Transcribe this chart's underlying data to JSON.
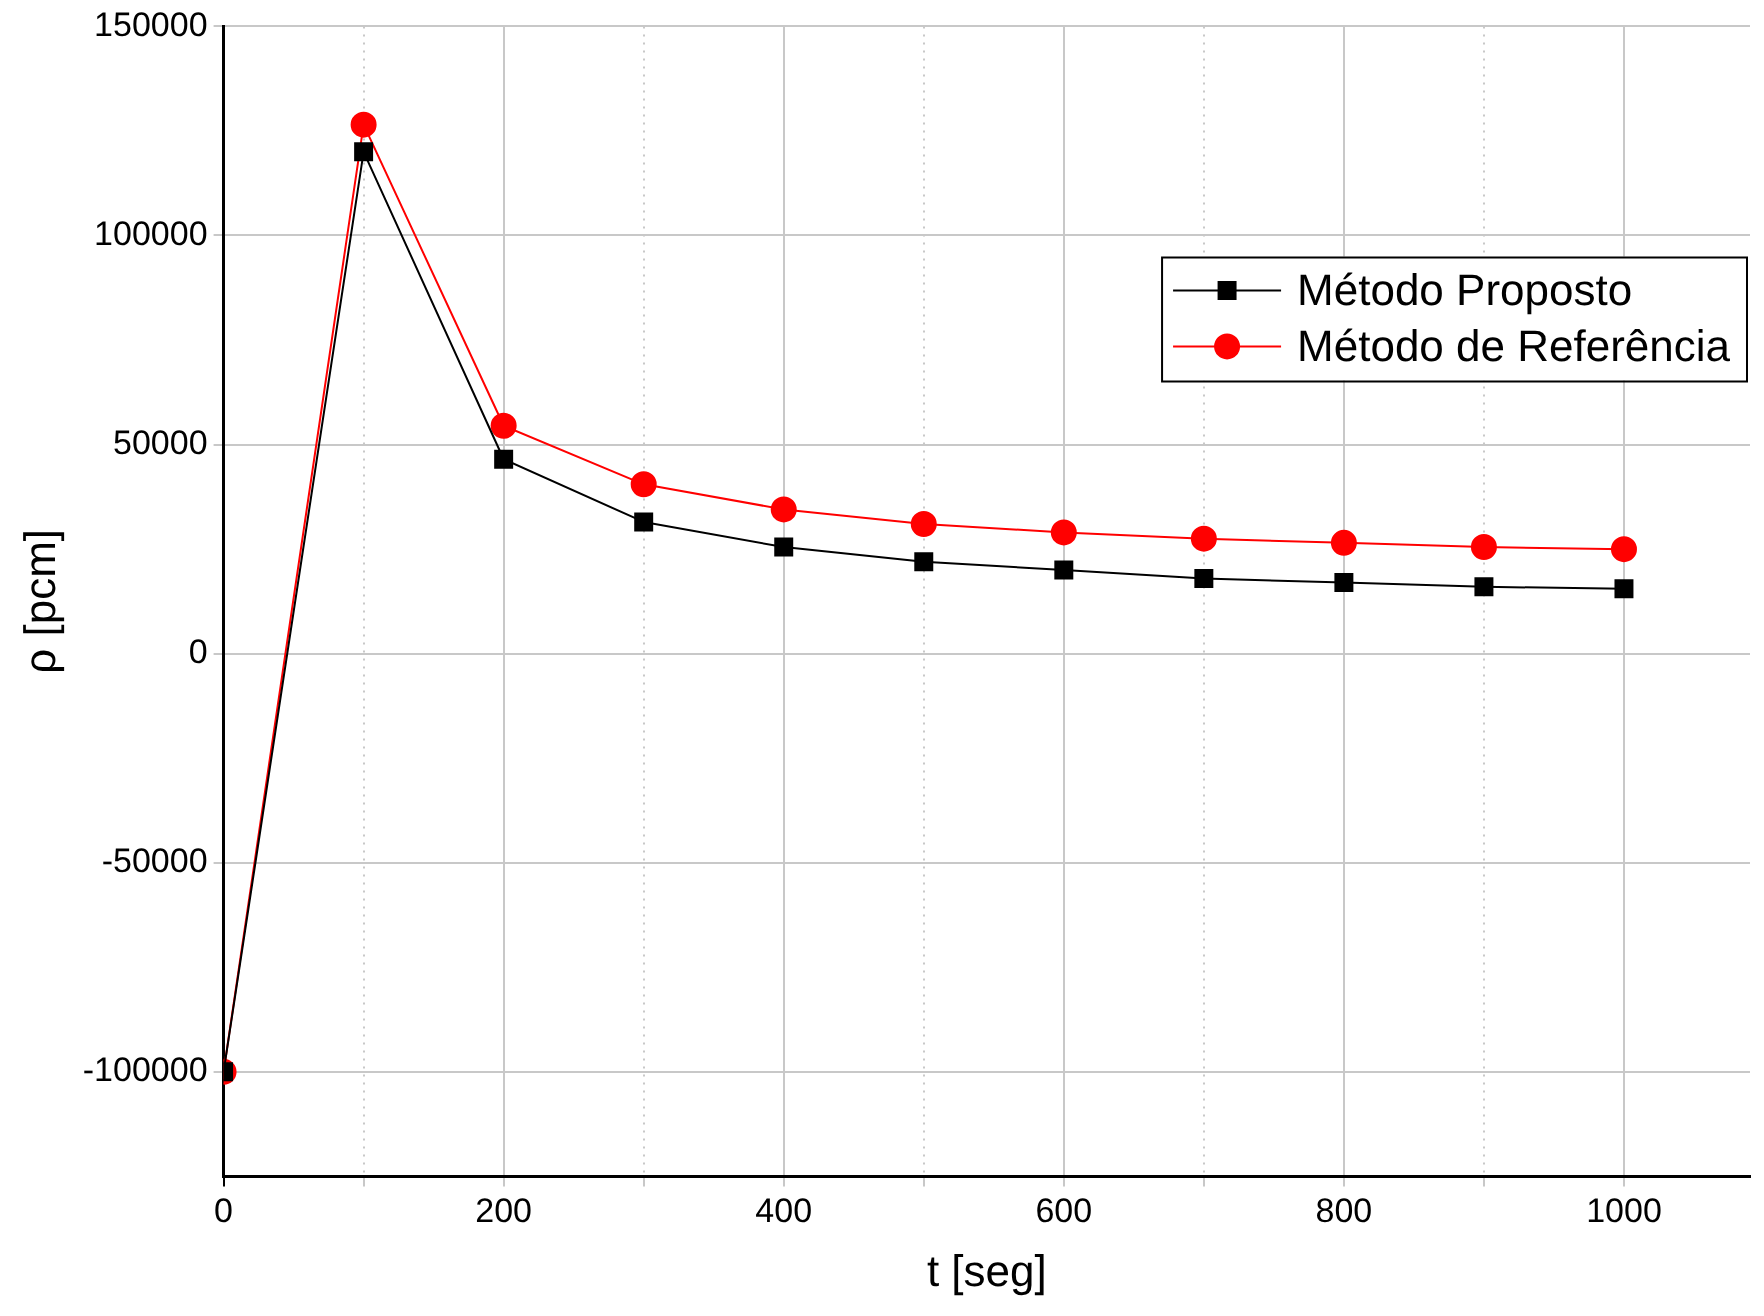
{
  "chart_data": {
    "type": "line",
    "xlabel": "t [seg]",
    "ylabel": "ρ [pcm]",
    "x": [
      0,
      100,
      200,
      300,
      400,
      500,
      600,
      700,
      800,
      900,
      1000
    ],
    "series": [
      {
        "name": "Método Proposto",
        "color": "#000000",
        "marker": "square",
        "values": [
          -100000,
          120000,
          46500,
          31500,
          25500,
          22000,
          20000,
          18000,
          17000,
          16000,
          15500
        ]
      },
      {
        "name": "Método de Referência",
        "color": "#ff0000",
        "marker": "circle",
        "values": [
          -100000,
          126500,
          54500,
          40500,
          34500,
          31000,
          29000,
          27500,
          26500,
          25500,
          25000
        ]
      }
    ],
    "xlim": [
      0,
      1090
    ],
    "xticks": [
      0,
      {
        "value": 100,
        "label": null
      },
      200,
      {
        "value": 300,
        "label": null
      },
      400,
      {
        "value": 500,
        "label": null
      },
      600,
      {
        "value": 700,
        "label": null
      },
      800,
      {
        "value": 900,
        "label": null
      },
      1000
    ],
    "ylim": [
      -125000,
      150000
    ],
    "yticks": [
      -100000,
      -50000,
      0,
      50000,
      100000,
      150000
    ],
    "grid": true,
    "legend": "top right",
    "line_style": "solid"
  }
}
